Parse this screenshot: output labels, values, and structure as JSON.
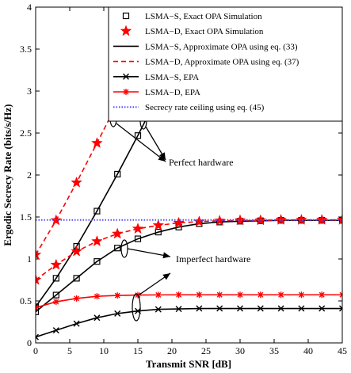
{
  "chart_data": {
    "type": "line",
    "xlabel": "Transmit SNR [dB]",
    "ylabel": "Ergodic Secrecy Rate (bits/s/Hz)",
    "xlim": [
      0,
      45
    ],
    "ylim": [
      0,
      4
    ],
    "xticks": [
      0,
      5,
      10,
      15,
      20,
      25,
      30,
      35,
      40,
      45
    ],
    "yticks": [
      0,
      0.5,
      1,
      1.5,
      2,
      2.5,
      3,
      3.5,
      4
    ],
    "grid": false,
    "legend_position": "top-right",
    "legend": [
      "LSMA−S, Exact OPA Simulation",
      "LSMA−D, Exact OPA Simulation",
      "LSMA−S, Approximate OPA using eq. (33)",
      "LSMA−D, Approximate OPA using eq. (37)",
      "LSMA−S, EPA",
      "LSMA−D, EPA",
      "Secrecy rate ceiling using eq. (45)"
    ],
    "annotations": [
      "Perfect hardware",
      "Imperfect hardware"
    ],
    "series": [
      {
        "name": "LSMA−S, Approximate OPA using eq. (33)",
        "group": "perfect",
        "color": "#000000",
        "style": "solid",
        "x": [
          0,
          3,
          6,
          9,
          12,
          15,
          18
        ],
        "y": [
          0.43,
          0.77,
          1.15,
          1.57,
          2.01,
          2.47,
          2.95
        ]
      },
      {
        "name": "LSMA−D, Approximate OPA using eq. (37)",
        "group": "perfect",
        "color": "#ff0000",
        "style": "dashed",
        "x": [
          0,
          3,
          6,
          9,
          12
        ],
        "y": [
          1.05,
          1.46,
          1.91,
          2.38,
          2.86
        ]
      },
      {
        "name": "LSMA−S, Exact OPA Simulation",
        "group": "perfect",
        "color": "#000000",
        "marker": "square",
        "x": [
          0,
          3,
          6,
          9,
          12,
          15
        ],
        "y": [
          0.43,
          0.77,
          1.15,
          1.57,
          2.01,
          2.47
        ]
      },
      {
        "name": "LSMA−D, Exact OPA Simulation",
        "group": "perfect",
        "color": "#ff0000",
        "marker": "star",
        "x": [
          0,
          3,
          6,
          9
        ],
        "y": [
          1.05,
          1.46,
          1.91,
          2.38
        ]
      },
      {
        "name": "LSMA−S, Approximate OPA using eq. (33)",
        "group": "imperfect",
        "color": "#000000",
        "style": "solid",
        "x": [
          0,
          3,
          6,
          9,
          12,
          15,
          18,
          21,
          24,
          27,
          30,
          33,
          36,
          39,
          42,
          45
        ],
        "y": [
          0.37,
          0.57,
          0.77,
          0.97,
          1.13,
          1.24,
          1.32,
          1.38,
          1.42,
          1.44,
          1.45,
          1.455,
          1.46,
          1.46,
          1.46,
          1.46
        ]
      },
      {
        "name": "LSMA−D, Approximate OPA using eq. (37)",
        "group": "imperfect",
        "color": "#ff0000",
        "style": "dashed",
        "x": [
          0,
          3,
          6,
          9,
          12,
          15,
          18,
          21,
          24,
          27,
          30,
          33,
          36,
          39,
          42,
          45
        ],
        "y": [
          0.75,
          0.93,
          1.09,
          1.21,
          1.3,
          1.36,
          1.4,
          1.43,
          1.445,
          1.455,
          1.46,
          1.46,
          1.465,
          1.465,
          1.465,
          1.465
        ]
      },
      {
        "name": "LSMA−S, Exact OPA Simulation",
        "group": "imperfect",
        "color": "#000000",
        "marker": "square",
        "x": [
          0,
          3,
          6,
          9,
          12,
          15,
          18,
          21,
          24,
          27,
          30,
          33,
          36,
          39,
          42,
          45
        ],
        "y": [
          0.37,
          0.57,
          0.77,
          0.97,
          1.13,
          1.24,
          1.32,
          1.38,
          1.42,
          1.44,
          1.45,
          1.455,
          1.46,
          1.46,
          1.46,
          1.46
        ]
      },
      {
        "name": "LSMA−D, Exact OPA Simulation",
        "group": "imperfect",
        "color": "#ff0000",
        "marker": "star",
        "x": [
          0,
          3,
          6,
          9,
          12,
          15,
          18,
          21,
          24,
          27,
          30,
          33,
          36,
          39,
          42,
          45
        ],
        "y": [
          0.75,
          0.93,
          1.09,
          1.21,
          1.3,
          1.36,
          1.4,
          1.43,
          1.445,
          1.455,
          1.46,
          1.46,
          1.465,
          1.465,
          1.465,
          1.465
        ]
      },
      {
        "name": "LSMA−S, EPA",
        "group": "imperfect",
        "color": "#000000",
        "style": "solid",
        "marker": "x",
        "x": [
          0,
          3,
          6,
          9,
          12,
          15,
          18,
          21,
          24,
          27,
          30,
          33,
          36,
          39,
          42,
          45
        ],
        "y": [
          0.07,
          0.15,
          0.23,
          0.3,
          0.35,
          0.38,
          0.4,
          0.405,
          0.41,
          0.41,
          0.41,
          0.41,
          0.41,
          0.41,
          0.41,
          0.41
        ]
      },
      {
        "name": "LSMA−D, EPA",
        "group": "imperfect",
        "color": "#ff0000",
        "style": "solid",
        "marker": "asterisk",
        "x": [
          0,
          3,
          6,
          9,
          12,
          15,
          18,
          21,
          24,
          27,
          30,
          33,
          36,
          39,
          42,
          45
        ],
        "y": [
          0.42,
          0.49,
          0.53,
          0.555,
          0.565,
          0.57,
          0.572,
          0.573,
          0.573,
          0.573,
          0.573,
          0.573,
          0.573,
          0.573,
          0.573,
          0.573
        ]
      },
      {
        "name": "Secrecy rate ceiling using eq. (45)",
        "color": "#5050ff",
        "style": "dotted",
        "x": [
          0,
          45
        ],
        "y": [
          1.465,
          1.465
        ]
      }
    ]
  }
}
